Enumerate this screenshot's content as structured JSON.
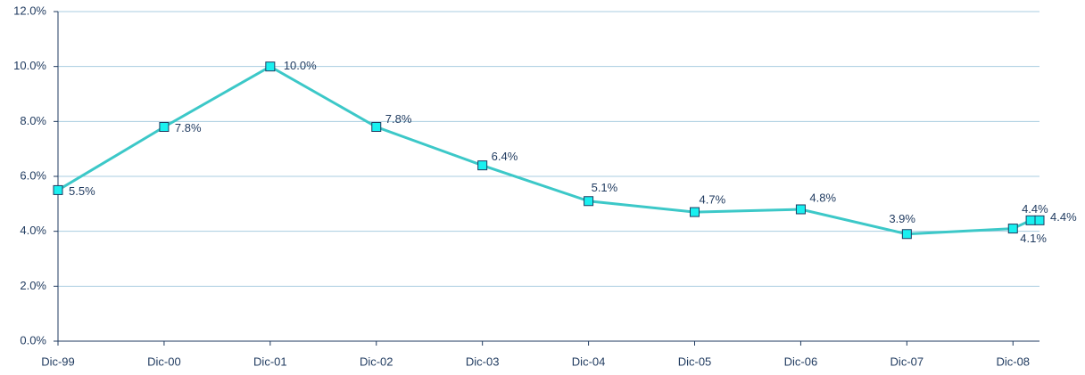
{
  "chart_data": {
    "type": "line",
    "x": [
      0,
      12,
      24,
      36,
      48,
      60,
      72,
      84,
      96,
      108,
      110,
      111
    ],
    "series": [
      {
        "color": "#3cc8c8",
        "marker_color": "#19f0f0",
        "values": [
          5.5,
          7.8,
          10.0,
          7.8,
          6.4,
          5.1,
          4.7,
          4.8,
          3.9,
          4.1,
          4.4,
          4.4
        ],
        "value_labels": [
          "5.5%",
          "7.8%",
          "10.0%",
          "7.8%",
          "6.4%",
          "5.1%",
          "4.7%",
          "4.8%",
          "3.9%",
          "4.1%",
          "4.4%",
          "4.4%"
        ]
      }
    ],
    "xlim": [
      0,
      111
    ],
    "xticks": [
      {
        "value": 0,
        "label": "Dic-99"
      },
      {
        "value": 12,
        "label": "Dic-00"
      },
      {
        "value": 24,
        "label": "Dic-01"
      },
      {
        "value": 36,
        "label": "Dic-02"
      },
      {
        "value": 48,
        "label": "Dic-03"
      },
      {
        "value": 60,
        "label": "Dic-04"
      },
      {
        "value": 72,
        "label": "Dic-05"
      },
      {
        "value": 84,
        "label": "Dic-06"
      },
      {
        "value": 96,
        "label": "Dic-07"
      },
      {
        "value": 108,
        "label": "Dic-08"
      }
    ],
    "ylim": [
      0,
      12
    ],
    "yticks": [
      {
        "value": 0,
        "label": "0.0%"
      },
      {
        "value": 2,
        "label": "2.0%"
      },
      {
        "value": 4,
        "label": "4.0%"
      },
      {
        "value": 6,
        "label": "6.0%"
      },
      {
        "value": 8,
        "label": "8.0%"
      },
      {
        "value": 10,
        "label": "10.0%"
      },
      {
        "value": 12,
        "label": "12.0%"
      }
    ],
    "grid": true
  }
}
